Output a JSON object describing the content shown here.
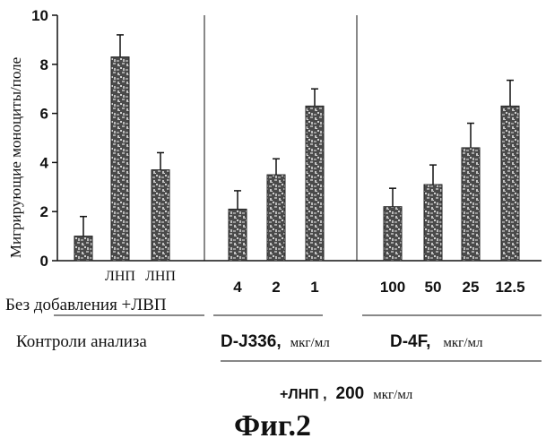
{
  "figure_caption": "Фиг.2",
  "chart_data": {
    "type": "bar",
    "ylabel": "Мигрирующие моноциты/поле",
    "ylim": [
      0,
      10
    ],
    "yticks": [
      0,
      2,
      4,
      6,
      8,
      10
    ],
    "grid": false,
    "legend": "none",
    "bar_style": "speckled dark gray",
    "categories": [
      "",
      "ЛНП",
      "ЛНП",
      "4",
      "2",
      "1",
      "100",
      "50",
      "25",
      "12.5"
    ],
    "values": [
      1.0,
      8.3,
      3.7,
      2.1,
      3.5,
      6.3,
      2.2,
      3.1,
      4.6,
      6.3
    ],
    "errors": [
      0.8,
      0.9,
      0.7,
      0.75,
      0.65,
      0.7,
      0.75,
      0.8,
      1.0,
      1.05
    ],
    "groups": [
      {
        "start": 0,
        "end": 2
      },
      {
        "start": 3,
        "end": 5
      },
      {
        "start": 6,
        "end": 9
      }
    ]
  },
  "annotations": {
    "row1_left": "Без добавления +ЛВП",
    "row2_left": "Контроли анализа",
    "d_j336_name": "D-J336,",
    "d_j336_unit": "мкг/мл",
    "d4f_name": "D-4F,",
    "d4f_unit": "мкг/мл",
    "ldl_prefix": "+ЛНП ,",
    "ldl_dose": "200",
    "ldl_unit": "мкг/мл"
  },
  "colors": {
    "bar_fill": "#4a4a4a",
    "bar_light": "#bdbdbd",
    "ink": "#111111"
  }
}
